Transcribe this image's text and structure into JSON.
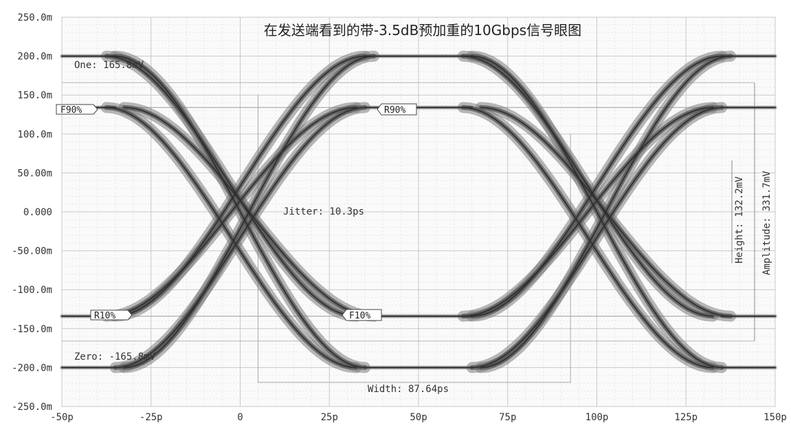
{
  "chart_data": {
    "type": "line",
    "title": "在发送端看到的带-3.5dB预加重的10Gbps信号眼图",
    "x_unit": "ps",
    "y_unit": "V",
    "xlim": [
      -50,
      150
    ],
    "ylim": [
      -0.25,
      0.25
    ],
    "x_ticks": [
      -50,
      -25,
      0,
      25,
      50,
      75,
      100,
      125,
      150
    ],
    "x_tick_labels": [
      "-50p",
      "-25p",
      "0",
      "25p",
      "50p",
      "75p",
      "100p",
      "125p",
      "150p"
    ],
    "y_ticks": [
      0.25,
      0.2,
      0.15,
      0.1,
      0.05,
      0,
      -0.05,
      -0.1,
      -0.15,
      -0.2,
      -0.25
    ],
    "y_tick_labels": [
      "250.0m",
      "200.0m",
      "150.0m",
      "100.0m",
      "50.00m",
      "0.000",
      "-50.00m",
      "-100.0m",
      "-150.0m",
      "-200.0m",
      "-250.0m"
    ],
    "grid": true,
    "levels": {
      "high": 0.2,
      "high_deemph": 0.134,
      "low": -0.2,
      "low_deemph": -0.134,
      "bit_period_ps": 100,
      "crossings_ps": [
        0,
        100
      ]
    },
    "annotations": {
      "one": "One: 165.8mV",
      "zero": "Zero: -165.8mV",
      "jitter": "Jitter: 10.3ps",
      "width": "Width: 87.64ps",
      "height": "Height: 132.2mV",
      "amplitude": "Amplitude: 331.7mV"
    },
    "markers": {
      "f90": {
        "label": "F90%",
        "x": -50,
        "y": 0.134
      },
      "r90": {
        "label": "R90%",
        "x": 50,
        "y": 0.134
      },
      "r10": {
        "label": "R10%",
        "x": -25,
        "y": -0.134
      },
      "f10": {
        "label": "F10%",
        "x": 25,
        "y": -0.134
      }
    }
  }
}
